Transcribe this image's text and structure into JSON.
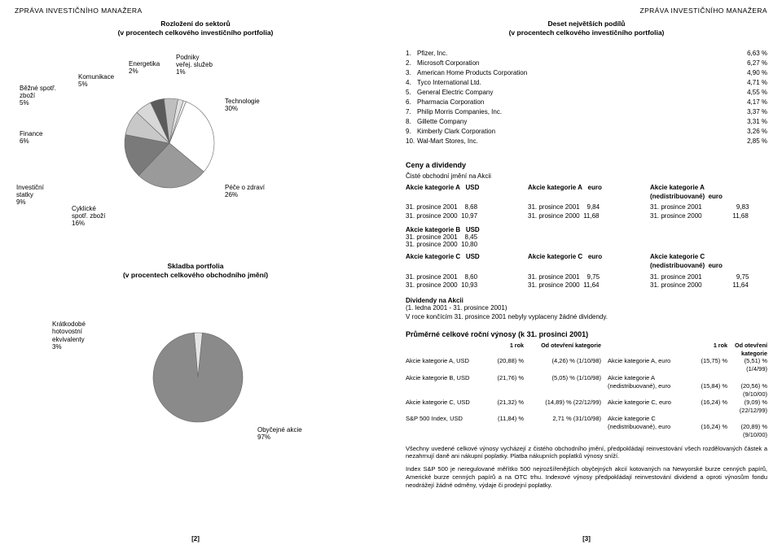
{
  "header": {
    "left": "ZPRÁVA INVESTIČNÍHO MANAŽERA",
    "right": "ZPRÁVA INVESTIČNÍHO MANAŽERA"
  },
  "leftPage": {
    "sub1": "Rozložení do sektorů",
    "sub2": "(v procentech celkového investičního portfolia)",
    "pie1": {
      "type": "pie",
      "colors": [
        "#5b5b5b",
        "#bfbfbf",
        "#e0e0e0",
        "#f0f0f0",
        "#ffffff",
        "#9a9a9a",
        "#7a7a7a",
        "#c8c8c8",
        "#d8d8d8",
        "#888888"
      ],
      "slices": [
        {
          "label": "Běžné spotř.\nzboží",
          "pct": 5
        },
        {
          "label": "Komunikace",
          "pct": 5
        },
        {
          "label": "Energetika",
          "pct": 2
        },
        {
          "label": "Podniky\nveřej. služeb",
          "pct": 1
        },
        {
          "label": "Technologie",
          "pct": 30
        },
        {
          "label": "Péče o zdraví",
          "pct": 26
        },
        {
          "label": "Cyklické\nspotř. zboží",
          "pct": 16
        },
        {
          "label": "Investiční\nstatky",
          "pct": 9
        },
        {
          "label": "Finance",
          "pct": 6
        }
      ],
      "stroke": "#666666",
      "radius": 55
    },
    "pie2_caption1": "Skladba portfolia",
    "pie2_caption2": "(v procentech celkového obchodního jmění)",
    "pie2": {
      "type": "pie",
      "colors": [
        "#e5e5e5",
        "#8a8a8a"
      ],
      "slices": [
        {
          "label": "Krátkodobé\nhotovostní\nekvivalenty",
          "pct": 3
        },
        {
          "label": "Obyčejné akcie",
          "pct": 97
        }
      ],
      "stroke": "#666666",
      "radius": 55
    },
    "footer": "[2]"
  },
  "rightPage": {
    "sub1": "Deset největších podílů",
    "sub2": "(v procentech celkového investičního portfolia)",
    "holdings": [
      {
        "n": "1.",
        "name": "Pfizer, Inc.",
        "pct": "6,63 %"
      },
      {
        "n": "2.",
        "name": "Microsoft Corporation",
        "pct": "6,27 %"
      },
      {
        "n": "3.",
        "name": "American Home Products Corporation",
        "pct": "4,90 %"
      },
      {
        "n": "4.",
        "name": "Tyco International Ltd.",
        "pct": "4,71 %"
      },
      {
        "n": "5.",
        "name": "General Electric Company",
        "pct": "4,55 %"
      },
      {
        "n": "6.",
        "name": "Pharmacia Corporation",
        "pct": "4,17 %"
      },
      {
        "n": "7.",
        "name": "Philip Morris Companies, Inc.",
        "pct": "3,37 %"
      },
      {
        "n": "8.",
        "name": "Gillette Company",
        "pct": "3,31 %"
      },
      {
        "n": "9.",
        "name": "Kimberly Clark Corporation",
        "pct": "3,26 %"
      },
      {
        "n": "10.",
        "name": "Wal-Mart Stores, Inc.",
        "pct": "2,85 %"
      }
    ],
    "ceny_title": "Ceny a dividendy",
    "nav_intro": "Čisté obchodní jmění na Akcii",
    "catA": {
      "h1": "Akcie kategorie A",
      "h1b": "USD",
      "h2": "Akcie kategorie A",
      "h2b": "euro",
      "h3": "Akcie kategorie A (nedistribuované)",
      "h3b": "euro",
      "r1a": "31. prosince 2001",
      "r1av": "8,68",
      "r1b": "31. prosince 2001",
      "r1bv": "9,84",
      "r1c": "31. prosince 2001",
      "r1cv": "9,83",
      "r2a": "31. prosince 2000",
      "r2av": "10,97",
      "r2b": "31. prosince 2000",
      "r2bv": "11,68",
      "r2c": "31. prosince 2000",
      "r2cv": "11,68"
    },
    "catB": {
      "h": "Akcie kategorie B",
      "hb": "USD",
      "r1": "31. prosince 2001",
      "r1v": "8,45",
      "r2": "31. prosince 2000",
      "r2v": "10,80"
    },
    "catC": {
      "h1": "Akcie kategorie C",
      "h1b": "USD",
      "h2": "Akcie kategorie C",
      "h2b": "euro",
      "h3": "Akcie kategorie C (nedistribuované)",
      "h3b": "euro",
      "r1a": "31. prosince 2001",
      "r1av": "8,60",
      "r1b": "31. prosince 2001",
      "r1bv": "9,75",
      "r1c": "31. prosince 2001",
      "r1cv": "9,75",
      "r2a": "31. prosince 2000",
      "r2av": "10,93",
      "r2b": "31. prosince 2000",
      "r2bv": "11,64",
      "r2c": "31. prosince 2000",
      "r2cv": "11,64"
    },
    "div_title": "Dividendy na Akcii",
    "div_period": "(1. ledna 2001 - 31. prosince 2001)",
    "div_text": "V roce končícím 31. prosince 2001 nebyly vyplaceny žádné dividendy.",
    "perf_title": "Průměrné celkové roční výnosy (k 31. prosinci 2001)",
    "perf_h": {
      "c2": "1 rok",
      "c3": "Od otevření kategorie",
      "c5": "1 rok",
      "c6": "Od otevření kategorie"
    },
    "perf": [
      {
        "c1": "Akcie kategorie A, USD",
        "c2": "(20,88) %",
        "c3": "(4,26) % (1/10/98)",
        "c4": "Akcie kategorie A, euro",
        "c5": "(15,75) %",
        "c6": "(5,51) % (1/4/99)"
      },
      {
        "c1": "Akcie kategorie B, USD",
        "c2": "(21,76) %",
        "c3": "(5,05) % (1/10/98)",
        "c4": "Akcie kategorie A",
        "c5": "",
        "c6": ""
      },
      {
        "c1": "",
        "c2": "",
        "c3": "",
        "c4": "(nedistribuované), euro",
        "c5": "(15,84) %",
        "c6": "(20,56) % (9/10/00)"
      },
      {
        "c1": "Akcie kategorie C, USD",
        "c2": "(21,32) %",
        "c3": "(14,89) % (22/12/99)",
        "c4": "Akcie kategorie C, euro",
        "c5": "(16,24) %",
        "c6": "(9,09) % (22/12/99)"
      },
      {
        "c1": "S&P 500 Index, USD",
        "c2": "(11,84) %",
        "c3": "2,71 % (31/10/98)",
        "c4": "Akcie kategorie C",
        "c5": "",
        "c6": ""
      },
      {
        "c1": "",
        "c2": "",
        "c3": "",
        "c4": "(nedistribuované), euro",
        "c5": "(16,24) %",
        "c6": "(20,89) % (9/10/00)"
      }
    ],
    "para1": "Všechny uvedené celkové výnosy vycházejí z čistého obchodního jmění, předpokládají reinvestování všech rozdělovaných částek a nezahrnují daně ani nákupní poplatky. Platba nákupních poplatků výnosy sníží.",
    "para2": "Index S&P 500 je neregulované měřítko 500 nejrozšířenějších obyčejných akcií kotovaných na Newyorské burze cenných papírů, Americké burze cenných papírů a na OTC trhu. Indexové výnosy předpokládají reinvestování dividend a oproti výnosům fondu neodrážejí žádné odměny, výdaje či prodejní poplatky.",
    "footer": "[3]"
  }
}
